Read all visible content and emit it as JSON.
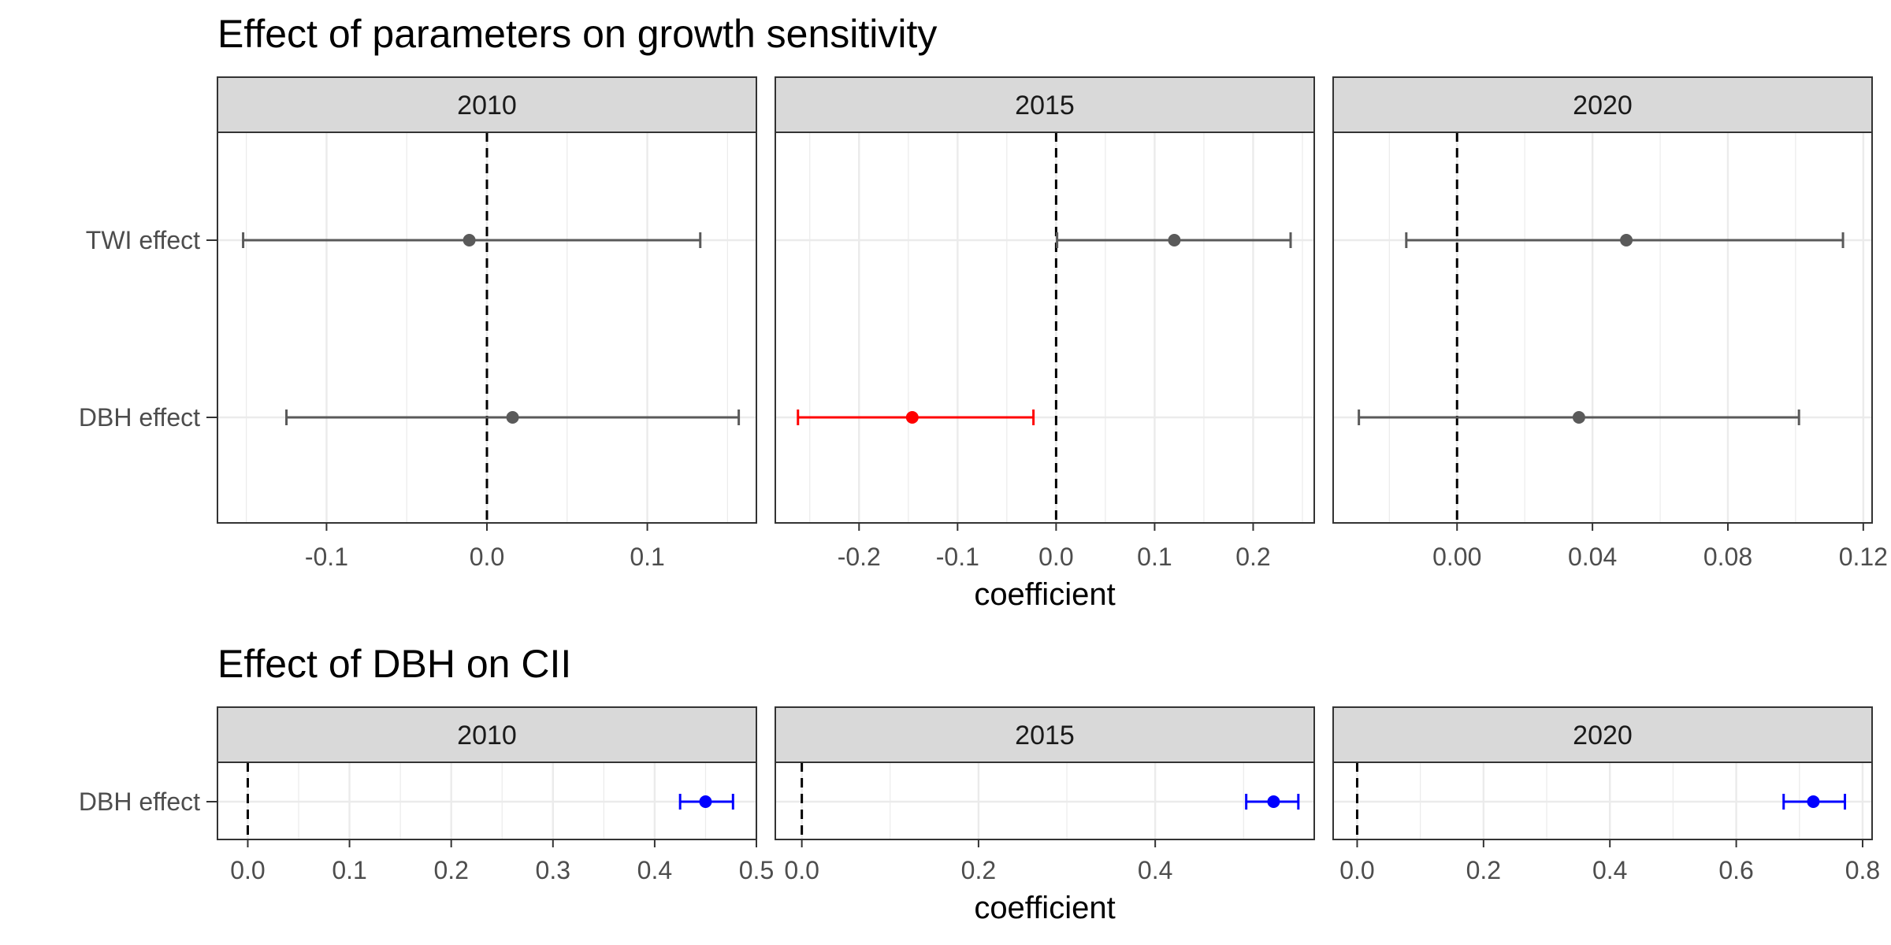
{
  "chart_data": [
    {
      "type": "errorbar",
      "title": "Effect of parameters on growth sensitivity",
      "xlabel": "coefficient",
      "ylabel": "",
      "categories": [
        "TWI effect",
        "DBH effect"
      ],
      "reference_line": 0,
      "grid": true,
      "facets": [
        {
          "strip": "2010",
          "xlim": [
            -0.168,
            0.168
          ],
          "ticks": [
            -0.1,
            0.0,
            0.1
          ],
          "tick_labels": [
            "-0.1",
            "0.0",
            "0.1"
          ],
          "points": [
            {
              "category": "TWI effect",
              "estimate": -0.011,
              "lower": -0.152,
              "upper": 0.133,
              "color": "#5a5a5a"
            },
            {
              "category": "DBH effect",
              "estimate": 0.016,
              "lower": -0.125,
              "upper": 0.157,
              "color": "#5a5a5a"
            }
          ]
        },
        {
          "strip": "2015",
          "xlim": [
            -0.285,
            0.262
          ],
          "ticks": [
            -0.2,
            -0.1,
            0.0,
            0.1,
            0.2
          ],
          "tick_labels": [
            "-0.2",
            "-0.1",
            "0.0",
            "0.1",
            "0.2"
          ],
          "points": [
            {
              "category": "TWI effect",
              "estimate": 0.12,
              "lower": 0.001,
              "upper": 0.238,
              "color": "#5a5a5a"
            },
            {
              "category": "DBH effect",
              "estimate": -0.146,
              "lower": -0.262,
              "upper": -0.023,
              "color": "#ff0000"
            }
          ]
        },
        {
          "strip": "2020",
          "xlim": [
            -0.0366,
            0.1226
          ],
          "ticks": [
            0.0,
            0.04,
            0.08,
            0.12
          ],
          "tick_labels": [
            "0.00",
            "0.04",
            "0.08",
            "0.12"
          ],
          "points": [
            {
              "category": "TWI effect",
              "estimate": 0.05,
              "lower": -0.015,
              "upper": 0.114,
              "color": "#5a5a5a"
            },
            {
              "category": "DBH effect",
              "estimate": 0.036,
              "lower": -0.029,
              "upper": 0.101,
              "color": "#5a5a5a"
            }
          ]
        }
      ]
    },
    {
      "type": "errorbar",
      "title": "Effect of DBH on CII",
      "xlabel": "coefficient",
      "ylabel": "",
      "categories": [
        "DBH effect"
      ],
      "reference_line": 0,
      "grid": true,
      "facets": [
        {
          "strip": "2010",
          "xlim": [
            -0.0298,
            0.5
          ],
          "ticks": [
            0.0,
            0.1,
            0.2,
            0.3,
            0.4,
            0.5
          ],
          "tick_labels": [
            "0.0",
            "0.1",
            "0.2",
            "0.3",
            "0.4",
            "0.5"
          ],
          "points": [
            {
              "category": "DBH effect",
              "estimate": 0.45,
              "lower": 0.425,
              "upper": 0.477,
              "color": "#0000ff"
            }
          ]
        },
        {
          "strip": "2015",
          "xlim": [
            -0.03,
            0.58
          ],
          "ticks": [
            0.0,
            0.2,
            0.4
          ],
          "tick_labels": [
            "0.0",
            "0.2",
            "0.4"
          ],
          "points": [
            {
              "category": "DBH effect",
              "estimate": 0.534,
              "lower": 0.503,
              "upper": 0.562,
              "color": "#0000ff"
            }
          ]
        },
        {
          "strip": "2020",
          "xlim": [
            -0.038,
            0.815
          ],
          "ticks": [
            0.0,
            0.2,
            0.4,
            0.6,
            0.8
          ],
          "tick_labels": [
            "0.0",
            "0.2",
            "0.4",
            "0.6",
            "0.8"
          ],
          "points": [
            {
              "category": "DBH effect",
              "estimate": 0.722,
              "lower": 0.675,
              "upper": 0.772,
              "color": "#0000ff"
            }
          ]
        }
      ]
    }
  ]
}
